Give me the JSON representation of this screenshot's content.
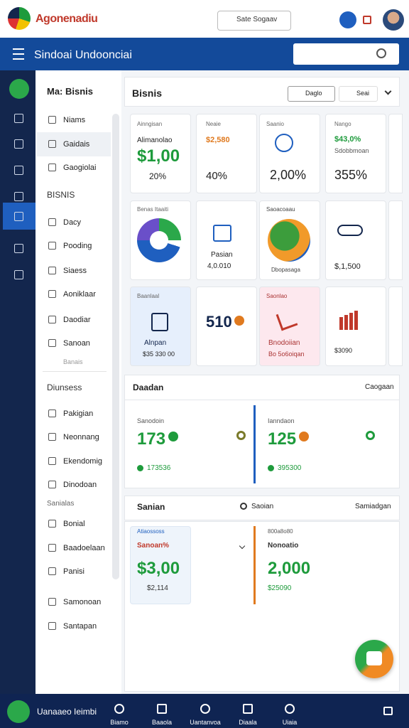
{
  "header": {
    "brand": "Agonenadiu",
    "search_button": "Sate Sogaav"
  },
  "topbar": {
    "title": "Sindoai Undoonciai"
  },
  "sidebar": {
    "title": "Ma: Bisnis",
    "top_items": [
      "Niams",
      "Gaidais",
      "Gaogiolai"
    ],
    "section_1": {
      "heading": "BISNIS",
      "items": [
        "Dacy",
        "Pooding",
        "Siaess",
        "Aoniklaar",
        "Daodiar",
        "Sanoan"
      ],
      "footer": "Banais"
    },
    "section_2": {
      "heading": "Diunsess",
      "items": [
        "Pakigian",
        "Neonnang",
        "Ekendomig",
        "Dinodoan"
      ]
    },
    "section_3": {
      "heading": "Sanialas",
      "items": [
        "Bonial",
        "Baadoelaan",
        "Panisi"
      ]
    },
    "bottom_items": [
      "Samonoan",
      "Santapan"
    ]
  },
  "main": {
    "title": "Bisnis",
    "buttons": [
      "Daglo",
      "Seai"
    ],
    "cards": [
      [
        {
          "label": "Ainngisan",
          "caption": "Alimanolao",
          "value": "$1,00",
          "change": "20%"
        },
        {
          "label": "Neaie",
          "value": "$2,580",
          "change": "40%"
        },
        {
          "label": "Saanio",
          "change": "2,00%"
        },
        {
          "label": "Nango",
          "value": "$43,0%",
          "caption": "Sdobbmoan",
          "change": "355%"
        }
      ],
      [
        {
          "label": "Benas Itaaiti"
        },
        {
          "caption": "Pasian",
          "change": "4,0.010"
        },
        {
          "label": "Saoacoaau",
          "caption": "Dbopasaga"
        },
        {
          "change": "$,1,500"
        }
      ],
      [
        {
          "label": "Baanlaal",
          "caption": "Alnpan",
          "change": "$35 330 00"
        },
        {
          "value": "510"
        },
        {
          "label": "Saonlao",
          "caption": "Bnodoiian",
          "change": "Bo 5o6oiqan"
        },
        {
          "change": "$3090"
        }
      ]
    ],
    "section_a": {
      "title": "Daadan",
      "action": "Caogaan",
      "stats": [
        {
          "label": "Sanodoin",
          "value": "173",
          "sub": "173536"
        },
        {
          "label": "Ianndaon",
          "value": "125",
          "sub": "395300"
        }
      ]
    },
    "section_b": {
      "title": "Sanian",
      "search": "Saoian",
      "action": "Samiadgan",
      "stats": [
        {
          "label": "Atiaossoss",
          "caption": "Sanoan%",
          "value": "$3,00",
          "sub": "$2,114"
        },
        {
          "label": "800a8o80",
          "caption": "Nonoatio",
          "value": "2,000",
          "sub": "$25090"
        }
      ]
    }
  },
  "bottom_bar": {
    "title": "Uanaaeo Ieimbi",
    "tabs": [
      "Biamo",
      "Baaola",
      "Uantanvoa",
      "Diaala",
      "Uiaia"
    ]
  }
}
